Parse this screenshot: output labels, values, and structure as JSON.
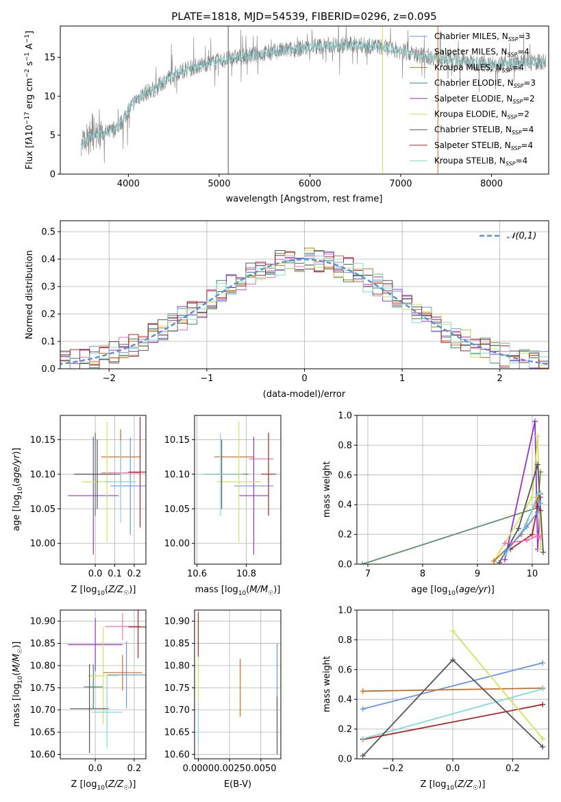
{
  "figure_title": "PLATE=1818, MJD=54539, FIBERID=0296, z=0.095",
  "chart_data": [
    {
      "id": "spectrum",
      "type": "line",
      "title": "PLATE=1818, MJD=54539, FIBERID=0296, z=0.095",
      "xlabel": "wavelength [Angstrom, rest frame]",
      "ylabel": "Flux [f_λ 10^-17 erg cm^-2 s^-1 A^-1]",
      "xlim": [
        3250,
        8630
      ],
      "ylim": [
        0,
        19
      ],
      "xticks": [
        4000,
        5000,
        6000,
        7000,
        8000
      ],
      "yticks": [
        0,
        5,
        10,
        15
      ],
      "grid": false,
      "legend_position": "right",
      "legend": [
        {
          "label": "Chabrier MILES, N_SSP=3",
          "color": "#6495ed"
        },
        {
          "label": "Salpeter MILES, N_SSP=4",
          "color": "#ff69b4"
        },
        {
          "label": "Kroupa MILES, N_SSP=4",
          "color": "#d2691e"
        },
        {
          "label": "Chabrier ELODIE, N_SSP=3",
          "color": "#2e8b57"
        },
        {
          "label": "Salpeter ELODIE, N_SSP=2",
          "color": "#9932cc"
        },
        {
          "label": "Kroupa ELODIE, N_SSP=2",
          "color": "#d4e157"
        },
        {
          "label": "Chabrier STELIB, N_SSP=4",
          "color": "#555555"
        },
        {
          "label": "Salpeter STELIB, N_SSP=4",
          "color": "#b22222"
        },
        {
          "label": "Kroupa STELIB, N_SSP=4",
          "color": "#7fdbda"
        }
      ],
      "continuum": {
        "x": [
          3500,
          3600,
          3700,
          3800,
          3900,
          4000,
          4100,
          4200,
          4300,
          4400,
          4500,
          4600,
          4800,
          5000,
          5200,
          5500,
          5800,
          6000,
          6200,
          6500,
          6800,
          7000,
          7200,
          7400,
          7600,
          7800,
          8000,
          8200,
          8400,
          8600
        ],
        "y": [
          4.0,
          5.0,
          5.2,
          5.4,
          6.2,
          8.2,
          9.8,
          10.5,
          11.0,
          12.0,
          12.8,
          13.3,
          14.0,
          14.5,
          15.0,
          15.5,
          16.0,
          16.3,
          16.5,
          16.6,
          16.3,
          15.8,
          15.3,
          14.9,
          14.5,
          14.3,
          14.1,
          14.2,
          14.3,
          14.4
        ]
      }
    },
    {
      "id": "residuals",
      "type": "step",
      "xlabel": "(data-model)/error",
      "ylabel": "Normed distribution",
      "xlim": [
        -2.5,
        2.5
      ],
      "ylim": [
        0,
        0.54
      ],
      "xticks": [
        -2,
        -1,
        0,
        1,
        2
      ],
      "yticks": [
        0.0,
        0.1,
        0.2,
        0.3,
        0.4,
        0.5
      ],
      "grid": true,
      "legend_position": "top-right",
      "reference_curve": {
        "label": "𝒩(0,1)",
        "color": "#5b8fd6"
      },
      "bin_width": 0.1,
      "series_colors": [
        "#6495ed",
        "#ff69b4",
        "#d2691e",
        "#2e8b57",
        "#9932cc",
        "#d4e157",
        "#555555",
        "#b22222",
        "#7fdbda"
      ]
    },
    {
      "id": "age_vs_Z",
      "type": "errorbar",
      "xlabel": "Z [log10(Z/Z☉)]",
      "ylabel": "age [log10(age/yr)]",
      "xlim": [
        -0.18,
        0.26
      ],
      "ylim": [
        9.97,
        10.185
      ],
      "xticks": [
        0.0,
        0.1,
        0.2
      ],
      "yticks": [
        10.0,
        10.05,
        10.1,
        10.15
      ],
      "grid": true,
      "points": [
        {
          "x": 0.18,
          "xerr": 0.1,
          "y": 10.083,
          "yerr": 0.07,
          "color": "#6495ed"
        },
        {
          "x": 0.13,
          "xerr": 0.1,
          "y": 10.102,
          "yerr": 0.053,
          "color": "#ff69b4"
        },
        {
          "x": 0.13,
          "xerr": 0.1,
          "y": 10.125,
          "yerr": 0.04,
          "color": "#d2691e"
        },
        {
          "x": 0.0,
          "xerr": 0.1,
          "y": 10.1,
          "yerr": 0.06,
          "color": "#2e8b57"
        },
        {
          "x": -0.01,
          "xerr": 0.13,
          "y": 10.069,
          "yerr": 0.085,
          "color": "#9932cc"
        },
        {
          "x": 0.06,
          "xerr": 0.13,
          "y": 10.089,
          "yerr": 0.087,
          "color": "#d4e157"
        },
        {
          "x": 0.01,
          "xerr": 0.12,
          "y": 10.1,
          "yerr": 0.05,
          "color": "#555555"
        },
        {
          "x": 0.23,
          "xerr": 0.06,
          "y": 10.103,
          "yerr": 0.08,
          "color": "#b22222"
        },
        {
          "x": 0.13,
          "xerr": 0.08,
          "y": 10.089,
          "yerr": 0.06,
          "color": "#7fdbda"
        }
      ]
    },
    {
      "id": "age_vs_mass",
      "type": "errorbar",
      "xlabel": "mass [log10(M/M☉)]",
      "ylabel": "",
      "xlim": [
        10.59,
        10.94
      ],
      "ylim": [
        9.97,
        10.185
      ],
      "xticks": [
        10.6,
        10.8
      ],
      "yticks": [
        10.0,
        10.05,
        10.1,
        10.15
      ],
      "grid": true,
      "points": [
        {
          "x": 10.86,
          "xerr": 0.05,
          "y": 10.122,
          "yerr": 0.0,
          "color": "#ff69b4"
        },
        {
          "x": 10.75,
          "xerr": 0.08,
          "y": 10.125,
          "yerr": 0.0,
          "color": "#d2691e"
        },
        {
          "x": 10.83,
          "xerr": 0.08,
          "y": 10.083,
          "yerr": 0.0,
          "color": "#6495ed"
        },
        {
          "x": 10.74,
          "xerr": 0.07,
          "y": 10.1,
          "yerr": 0.0,
          "color": "#2e8b57"
        },
        {
          "x": 10.83,
          "xerr": 0.06,
          "y": 10.069,
          "yerr": 0.085,
          "color": "#9932cc"
        },
        {
          "x": 10.77,
          "xerr": 0.09,
          "y": 10.089,
          "yerr": 0.087,
          "color": "#d4e157"
        },
        {
          "x": 10.7,
          "xerr": 0.07,
          "y": 10.1,
          "yerr": 0.05,
          "color": "#555555"
        },
        {
          "x": 10.89,
          "xerr": 0.03,
          "y": 10.1,
          "yerr": 0.06,
          "color": "#b22222"
        },
        {
          "x": 10.695,
          "xerr": 0.09,
          "y": 10.1,
          "yerr": 0.06,
          "color": "#7fdbda"
        }
      ]
    },
    {
      "id": "mass_weight_vs_age",
      "type": "line",
      "xlabel": "age [log10(age/yr)]",
      "ylabel": "mass weight",
      "xlim": [
        6.8,
        10.3
      ],
      "ylim": [
        0,
        1.0
      ],
      "xticks": [
        7,
        8,
        9,
        10
      ],
      "yticks": [
        0.0,
        0.2,
        0.4,
        0.6,
        0.8,
        1.0
      ],
      "grid": true,
      "series": [
        {
          "x": [
            6.9,
            10.1,
            10.15
          ],
          "y": [
            0.0,
            0.38,
            0.62
          ],
          "color": "#5f8f6a"
        },
        {
          "x": [
            9.5,
            10.05,
            10.1,
            10.15
          ],
          "y": [
            0.03,
            0.96,
            0.1,
            0.45
          ],
          "color": "#9932cc"
        },
        {
          "x": [
            9.3,
            10.0,
            10.1,
            10.15
          ],
          "y": [
            0.02,
            0.45,
            0.86,
            0.1
          ],
          "color": "#d4e157"
        },
        {
          "x": [
            9.3,
            9.8,
            10.1,
            10.15
          ],
          "y": [
            0.02,
            0.2,
            0.45,
            0.47
          ],
          "color": "#d2691e"
        },
        {
          "x": [
            9.4,
            9.75,
            10.1,
            10.2
          ],
          "y": [
            0.01,
            0.24,
            0.67,
            0.08
          ],
          "color": "#555555"
        },
        {
          "x": [
            9.6,
            10.0,
            10.1,
            10.15
          ],
          "y": [
            0.1,
            0.2,
            0.39,
            0.36
          ],
          "color": "#b22222"
        },
        {
          "x": [
            9.5,
            9.9,
            10.1,
            10.15
          ],
          "y": [
            0.06,
            0.27,
            0.47,
            0.48
          ],
          "color": "#7fdbda"
        },
        {
          "x": [
            9.5,
            9.9,
            10.1,
            10.15
          ],
          "y": [
            0.08,
            0.25,
            0.35,
            0.41
          ],
          "color": "#6495ed"
        },
        {
          "x": [
            9.5,
            9.9,
            10.1,
            10.15
          ],
          "y": [
            0.14,
            0.16,
            0.19,
            0.18
          ],
          "color": "#ff69b4"
        }
      ]
    },
    {
      "id": "mass_vs_Z",
      "type": "errorbar",
      "xlabel": "Z [log10(Z/Z☉)]",
      "ylabel": "mass [log10(M/M☉)]",
      "xlim": [
        -0.18,
        0.26
      ],
      "ylim": [
        10.59,
        10.925
      ],
      "xticks": [
        0.0,
        0.2
      ],
      "yticks": [
        10.6,
        10.65,
        10.7,
        10.75,
        10.8,
        10.85,
        10.9
      ],
      "grid": true,
      "points": [
        {
          "x": 0.16,
          "xerr": 0.1,
          "y": 10.779,
          "yerr": 0.075,
          "color": "#6495ed"
        },
        {
          "x": 0.14,
          "xerr": 0.09,
          "y": 10.888,
          "yerr": 0.03,
          "color": "#ff69b4"
        },
        {
          "x": 0.14,
          "xerr": 0.1,
          "y": 10.784,
          "yerr": 0.04,
          "color": "#d2691e"
        },
        {
          "x": -0.01,
          "xerr": 0.05,
          "y": 10.752,
          "yerr": 0.05,
          "color": "#2e8b57"
        },
        {
          "x": 0.0,
          "xerr": 0.14,
          "y": 10.847,
          "yerr": 0.06,
          "color": "#9932cc"
        },
        {
          "x": 0.04,
          "xerr": 0.08,
          "y": 10.777,
          "yerr": 0.11,
          "color": "#d4e157"
        },
        {
          "x": -0.03,
          "xerr": 0.1,
          "y": 10.703,
          "yerr": 0.1,
          "color": "#555555"
        },
        {
          "x": 0.22,
          "xerr": 0.05,
          "y": 10.887,
          "yerr": 0.07,
          "color": "#b22222"
        },
        {
          "x": 0.06,
          "xerr": 0.08,
          "y": 10.695,
          "yerr": 0.08,
          "color": "#7fdbda"
        }
      ]
    },
    {
      "id": "mass_vs_EBV",
      "type": "errorbar",
      "xlabel": "E(B-V)",
      "ylabel": "",
      "xlim": [
        -0.0003,
        0.0066
      ],
      "ylim": [
        10.59,
        10.925
      ],
      "xticks": [
        0.0,
        0.0025,
        0.005
      ],
      "xticklabels": [
        "0.0000",
        "0.0025",
        "0.0050"
      ],
      "yticks": [
        10.6,
        10.65,
        10.7,
        10.75,
        10.8,
        10.85,
        10.9
      ],
      "grid": true,
      "points": [
        {
          "x": 0.0,
          "y": 10.87,
          "yerr": 0.05,
          "color": "#b22222"
        },
        {
          "x": 0.0,
          "y": 10.77,
          "yerr": 0.05,
          "color": "#d4e157"
        },
        {
          "x": 0.0,
          "y": 10.66,
          "yerr": 0.04,
          "color": "#7fdbda"
        },
        {
          "x": 0.00335,
          "y": 10.75,
          "yerr": 0.065,
          "color": "#d2691e"
        },
        {
          "x": 0.0063,
          "y": 10.78,
          "yerr": 0.07,
          "color": "#6495ed"
        },
        {
          "x": 0.0063,
          "y": 10.665,
          "yerr": 0.065,
          "color": "#555555"
        }
      ]
    },
    {
      "id": "mass_weight_vs_Z",
      "type": "line",
      "xlabel": "Z [log10(Z/Z☉)]",
      "ylabel": "mass weight",
      "xlim": [
        -0.32,
        0.32
      ],
      "ylim": [
        0,
        1.0
      ],
      "xticks": [
        -0.2,
        0.0,
        0.2
      ],
      "yticks": [
        0.0,
        0.2,
        0.4,
        0.6,
        0.8,
        1.0
      ],
      "grid": true,
      "series": [
        {
          "x": [
            -0.3,
            0.3
          ],
          "y": [
            0.335,
            0.645
          ],
          "color": "#6495ed"
        },
        {
          "x": [
            -0.3,
            0.3
          ],
          "y": [
            0.455,
            0.475
          ],
          "color": "#d2691e"
        },
        {
          "x": [
            -0.3,
            0.3
          ],
          "y": [
            0.13,
            0.365
          ],
          "color": "#b22222"
        },
        {
          "x": [
            -0.3,
            0.3
          ],
          "y": [
            0.135,
            0.47
          ],
          "color": "#7fdbda"
        },
        {
          "x": [
            -0.3,
            0.0,
            0.3
          ],
          "y": [
            0.02,
            0.665,
            0.08
          ],
          "color": "#555555"
        },
        {
          "x": [
            0.0,
            0.3
          ],
          "y": [
            0.86,
            0.135
          ],
          "color": "#d4e157"
        }
      ]
    }
  ]
}
